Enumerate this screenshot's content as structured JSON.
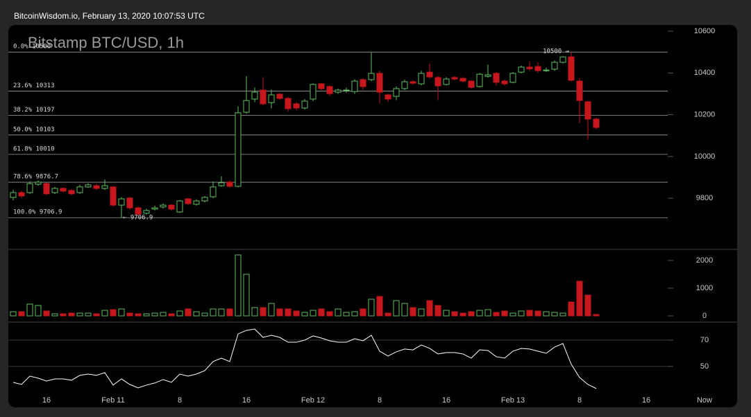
{
  "header": "BitcoinWisdom.io, February 13, 2020 10:07:53 UTC",
  "chart_data": {
    "type": "candlestick",
    "title": "Bitstamp BTC/USD, 1h",
    "categories": [
      null,
      null,
      null,
      null,
      "16",
      null,
      null,
      null,
      null,
      null,
      null,
      null,
      "Feb 11",
      null,
      null,
      null,
      null,
      null,
      null,
      null,
      "8",
      null,
      null,
      null,
      null,
      null,
      null,
      null,
      "16",
      null,
      null,
      null,
      null,
      null,
      null,
      null,
      "Feb 12",
      null,
      null,
      null,
      null,
      null,
      null,
      null,
      "8",
      null,
      null,
      null,
      null,
      null,
      null,
      null,
      "16",
      null,
      null,
      null,
      null,
      null,
      null,
      null,
      "Feb 13",
      null,
      null,
      null,
      null,
      null,
      null,
      null,
      "8",
      null,
      null,
      null,
      null,
      null,
      null,
      null,
      "16",
      null,
      null,
      null,
      null,
      null,
      null,
      "Now"
    ],
    "open": [
      9804,
      9827,
      9827,
      9867,
      9870,
      9827,
      9847,
      9837,
      9827,
      9854,
      9860,
      9847,
      9854,
      9767,
      9801,
      9754,
      9728,
      9748,
      9758,
      9767,
      9734,
      9797,
      9771,
      9787,
      9807,
      9860,
      9877,
      9857,
      10212,
      10275,
      10318,
      10258,
      10298,
      10278,
      10252,
      10232,
      10275,
      10348,
      10335,
      10308,
      10315,
      10311,
      10368,
      10368,
      10398,
      10295,
      10288,
      10325,
      10358,
      10348,
      10404,
      10378,
      10345,
      10378,
      10374,
      10361,
      10335,
      10384,
      10398,
      10361,
      10355,
      10404,
      10428,
      10431,
      10411,
      10418,
      10451,
      10477,
      10361,
      10262,
      10179,
      null,
      null,
      null,
      null,
      null,
      null,
      null,
      null,
      null,
      null,
      null,
      null,
      null
    ],
    "high": [
      9840,
      9835,
      9880,
      9885,
      9875,
      9855,
      9852,
      9845,
      9865,
      9872,
      9868,
      9890,
      9858,
      9805,
      9805,
      9760,
      9750,
      9765,
      9775,
      9772,
      9792,
      9800,
      9795,
      9810,
      9880,
      9905,
      9885,
      10240,
      10385,
      10330,
      10380,
      10320,
      10305,
      10285,
      10260,
      10275,
      10350,
      10352,
      10340,
      10325,
      10330,
      10370,
      10375,
      10498,
      10410,
      10300,
      10335,
      10368,
      10365,
      10410,
      10445,
      10385,
      10380,
      10385,
      10380,
      10365,
      10400,
      10440,
      10405,
      10368,
      10405,
      10435,
      10455,
      10450,
      10425,
      10460,
      10480,
      10500,
      10375,
      10265,
      10185,
      null,
      null,
      null,
      null,
      null,
      null,
      null,
      null,
      null,
      null,
      null,
      null,
      null
    ],
    "low": [
      9790,
      9800,
      9820,
      9860,
      9815,
      9820,
      9828,
      9815,
      9820,
      9850,
      9840,
      9840,
      9760,
      9706.9,
      9745,
      9718,
      9720,
      9742,
      9750,
      9740,
      9730,
      9768,
      9765,
      9780,
      9800,
      9855,
      9850,
      9852,
      10205,
      10260,
      10245,
      10230,
      10270,
      10215,
      10220,
      10225,
      10265,
      10318,
      10290,
      10300,
      10305,
      10300,
      10320,
      10360,
      10255,
      10262,
      10270,
      10318,
      10345,
      10340,
      10375,
      10270,
      10340,
      10365,
      10355,
      10325,
      10330,
      10378,
      10340,
      10340,
      10350,
      10398,
      10410,
      10400,
      10405,
      10410,
      10445,
      10360,
      10160,
      10080,
      10130,
      null,
      null,
      null,
      null,
      null,
      null,
      null,
      null,
      null,
      null,
      null,
      null,
      null
    ],
    "close": [
      9827,
      9811,
      9870,
      9877,
      9821,
      9847,
      9834,
      9821,
      9854,
      9864,
      9847,
      9860,
      9767,
      9797,
      9754,
      9724,
      9741,
      9754,
      9767,
      9748,
      9787,
      9774,
      9787,
      9804,
      9854,
      9874,
      9857,
      10209,
      10268,
      10308,
      10252,
      10295,
      10278,
      10229,
      10232,
      10265,
      10345,
      10325,
      10301,
      10318,
      10318,
      10361,
      10335,
      10398,
      10308,
      10275,
      10325,
      10358,
      10351,
      10398,
      10381,
      10338,
      10371,
      10371,
      10361,
      10331,
      10394,
      10391,
      10355,
      10348,
      10398,
      10428,
      10420,
      10411,
      10414,
      10451,
      10477,
      10365,
      10268,
      10179,
      10139,
      null,
      null,
      null,
      null,
      null,
      null,
      null,
      null,
      null,
      null,
      null,
      null,
      null
    ],
    "up_color": "#5fc15f",
    "down_color": "#c8161d",
    "ylim": [
      9555,
      10630
    ],
    "yticks": [
      9800,
      10000,
      10200,
      10400,
      10600
    ],
    "fib_levels": [
      {
        "value": 10500,
        "label": "0.0% 10500"
      },
      {
        "value": 10313,
        "label": "23.6% 10313"
      },
      {
        "value": 10197,
        "label": "38.2% 10197"
      },
      {
        "value": 10103,
        "label": "50.0% 10103"
      },
      {
        "value": 10010,
        "label": "61.8% 10010"
      },
      {
        "value": 9876.7,
        "label": "78.6% 9876.7"
      },
      {
        "value": 9706.9,
        "label": "100.0% 9706.9"
      }
    ],
    "annotations": {
      "high": "10500 →",
      "low": "← 9706.9"
    },
    "volume": {
      "values": [
        150,
        150,
        425,
        375,
        175,
        75,
        75,
        100,
        100,
        100,
        75,
        200,
        225,
        250,
        100,
        75,
        75,
        100,
        125,
        75,
        175,
        250,
        150,
        100,
        250,
        250,
        250,
        2200,
        1500,
        300,
        300,
        450,
        250,
        250,
        175,
        125,
        200,
        250,
        150,
        250,
        125,
        150,
        250,
        600,
        700,
        100,
        550,
        450,
        300,
        250,
        550,
        375,
        200,
        150,
        100,
        150,
        200,
        225,
        125,
        175,
        100,
        175,
        200,
        175,
        150,
        125,
        100,
        500,
        1250,
        750,
        50,
        null,
        null,
        null,
        null,
        null,
        null,
        null,
        null,
        null,
        null,
        null,
        null,
        null
      ],
      "ylim": [
        -225,
        2400
      ],
      "yticks": [
        0,
        1000,
        2000
      ]
    },
    "indicator": {
      "values": [
        37.9,
        36.3,
        42.6,
        41.1,
        38.9,
        40.5,
        40.5,
        39.5,
        43.2,
        44.2,
        43.2,
        45.3,
        35.8,
        40.5,
        36.3,
        33.7,
        35.8,
        37.4,
        40.0,
        37.9,
        44.2,
        42.6,
        44.2,
        46.8,
        53.7,
        56.3,
        53.7,
        74.7,
        77.4,
        78.4,
        72.1,
        73.7,
        72.1,
        68.4,
        68.4,
        70.0,
        73.2,
        71.6,
        69.5,
        68.4,
        68.4,
        71.1,
        69.5,
        73.7,
        61.6,
        57.9,
        61.1,
        63.2,
        62.6,
        66.3,
        63.7,
        59.5,
        60.5,
        60.5,
        59.5,
        56.3,
        62.6,
        62.1,
        57.4,
        56.3,
        61.6,
        63.7,
        63.2,
        61.6,
        60.0,
        64.7,
        67.4,
        51.6,
        41.6,
        36.3,
        33.2,
        null,
        null,
        null,
        null,
        null,
        null,
        null,
        null,
        null,
        null,
        null,
        null,
        null
      ],
      "color": "#ffffff",
      "ylim": [
        28.4,
        83.7
      ],
      "yticks": [
        50,
        70
      ]
    }
  }
}
